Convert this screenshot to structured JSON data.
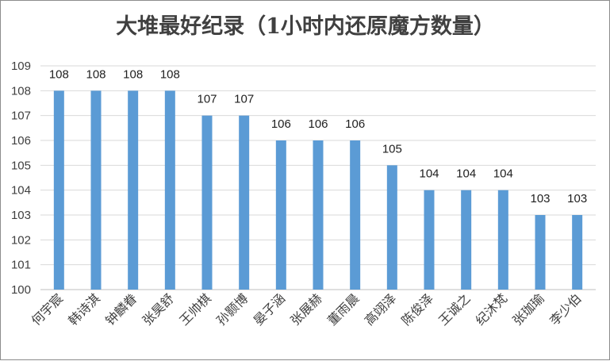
{
  "chart_data": {
    "type": "bar",
    "title": "大堆最好纪录（1小时内还原魔方数量）",
    "xlabel": "",
    "ylabel": "",
    "ylim": [
      100,
      109
    ],
    "yticks": [
      100,
      101,
      102,
      103,
      104,
      105,
      106,
      107,
      108,
      109
    ],
    "grid": true,
    "bar_color": "#5b9bd5",
    "categories": [
      "何宇宸",
      "韩诗淇",
      "钟麟眷",
      "张昊舒",
      "王帅棋",
      "孙颢博",
      "晏子涵",
      "张展赫",
      "董雨晨",
      "高翊泽",
      "陈俊泽",
      "王诚之",
      "纪沐梵",
      "张珈瑜",
      "李少伯"
    ],
    "values": [
      108,
      108,
      108,
      108,
      107,
      107,
      106,
      106,
      106,
      105,
      104,
      104,
      104,
      103,
      103
    ]
  }
}
